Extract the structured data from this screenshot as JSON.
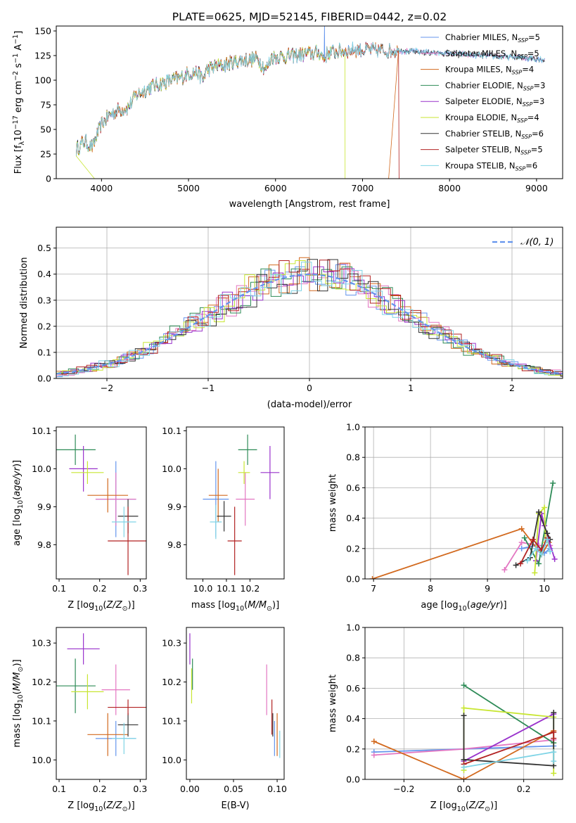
{
  "figure": {
    "title": "PLATE=0625, MJD=52145, FIBERID=0442, z=0.02"
  },
  "series": [
    {
      "name": "Chabrier MILES, N$_{SSP}$=5",
      "label_base": "Chabrier MILES, N",
      "label_sub": "SSP",
      "label_end": "=5",
      "color": "#6495ed"
    },
    {
      "name": "Salpeter MILES, N$_{SSP}$=5",
      "label_base": "Salpeter MILES, N",
      "label_sub": "SSP",
      "label_end": "=5",
      "color": "#e377c2"
    },
    {
      "name": "Kroupa MILES, N$_{SSP}$=4",
      "label_base": "Kroupa MILES, N",
      "label_sub": "SSP",
      "label_end": "=4",
      "color": "#d2691e"
    },
    {
      "name": "Chabrier ELODIE, N$_{SSP}$=3",
      "label_base": "Chabrier ELODIE, N",
      "label_sub": "SSP",
      "label_end": "=3",
      "color": "#2e8b57"
    },
    {
      "name": "Salpeter ELODIE, N$_{SSP}$=3",
      "label_base": "Salpeter ELODIE, N",
      "label_sub": "SSP",
      "label_end": "=3",
      "color": "#9932cc"
    },
    {
      "name": "Kroupa ELODIE, N$_{SSP}$=4",
      "label_base": "Kroupa ELODIE, N",
      "label_sub": "SSP",
      "label_end": "=4",
      "color": "#c8e632"
    },
    {
      "name": "Chabrier STELIB, N$_{SSP}$=6",
      "label_base": "Chabrier STELIB, N",
      "label_sub": "SSP",
      "label_end": "=6",
      "color": "#333333"
    },
    {
      "name": "Salpeter STELIB, N$_{SSP}$=5",
      "label_base": "Salpeter STELIB, N",
      "label_sub": "SSP",
      "label_end": "=5",
      "color": "#b22222"
    },
    {
      "name": "Kroupa STELIB, N$_{SSP}$=6",
      "label_base": "Kroupa STELIB, N",
      "label_sub": "SSP",
      "label_end": "=6",
      "color": "#7fd4e6"
    }
  ],
  "chart_data": [
    {
      "id": "spectrum",
      "type": "line",
      "title": "PLATE=0625, MJD=52145, FIBERID=0442, z=0.02",
      "xlabel": "wavelength [Angstrom, rest frame]",
      "ylabel_parts": [
        "Flux [f",
        "λ",
        "10",
        "−17",
        " erg cm",
        "−2",
        " s",
        "−1",
        " A",
        "−1",
        "]"
      ],
      "xlim": [
        3480,
        9300
      ],
      "ylim": [
        0,
        155
      ],
      "xticks": [
        4000,
        5000,
        6000,
        7000,
        8000,
        9000
      ],
      "yticks": [
        0,
        25,
        50,
        75,
        100,
        125,
        150
      ],
      "grid": false,
      "legend": "upper right",
      "continuum": [
        [
          3710,
          30
        ],
        [
          3800,
          38
        ],
        [
          3900,
          32
        ],
        [
          3950,
          45
        ],
        [
          4000,
          55
        ],
        [
          4100,
          65
        ],
        [
          4200,
          70
        ],
        [
          4300,
          72
        ],
        [
          4400,
          85
        ],
        [
          4500,
          90
        ],
        [
          4600,
          95
        ],
        [
          4700,
          97
        ],
        [
          4800,
          100
        ],
        [
          4900,
          102
        ],
        [
          5000,
          107
        ],
        [
          5100,
          108
        ],
        [
          5170,
          100
        ],
        [
          5200,
          110
        ],
        [
          5300,
          114
        ],
        [
          5400,
          115
        ],
        [
          5500,
          118
        ],
        [
          5600,
          120
        ],
        [
          5700,
          121
        ],
        [
          5800,
          122
        ],
        [
          5890,
          110
        ],
        [
          5950,
          123
        ],
        [
          6100,
          124
        ],
        [
          6200,
          125
        ],
        [
          6300,
          126
        ],
        [
          6400,
          127
        ],
        [
          6500,
          128
        ],
        [
          6563,
          122
        ],
        [
          6600,
          128
        ],
        [
          6700,
          129
        ],
        [
          6800,
          130
        ],
        [
          6900,
          131
        ],
        [
          7000,
          131
        ],
        [
          7200,
          130
        ],
        [
          7400,
          130
        ],
        [
          7600,
          129
        ],
        [
          7800,
          128
        ],
        [
          8000,
          127
        ],
        [
          8200,
          126
        ],
        [
          8400,
          125
        ],
        [
          8600,
          124
        ],
        [
          8800,
          123
        ],
        [
          9000,
          122
        ],
        [
          9100,
          121
        ]
      ],
      "features": {
        "drop_kroupa_elodie": 6800,
        "drop_kroupa_miles": 7300,
        "drop_salpeter_stelib": 7420,
        "drop_kroupa_elodie_start": 3920,
        "emission_peak": [
          6563,
          160
        ]
      }
    },
    {
      "id": "residuals",
      "type": "histogram",
      "xlabel": "(data-model)/error",
      "ylabel": "Normed distribution",
      "xlim": [
        -2.5,
        2.5
      ],
      "ylim": [
        0,
        0.58
      ],
      "xticks": [
        -2,
        -1,
        0,
        1,
        2
      ],
      "yticks": [
        0.0,
        0.1,
        0.2,
        0.3,
        0.4,
        0.5
      ],
      "grid": true,
      "legend": "upper right",
      "reference": {
        "label": "$\\mathcal{N}(0,1)$",
        "label_text": "𝒩(0, 1)",
        "mu": 0,
        "sigma": 1,
        "color": "#6495ed"
      }
    },
    {
      "id": "age_vs_Z",
      "type": "errorbar",
      "xlabel": "Z [log10(Z/Z⊙)]",
      "ylabel": "age  [log10(age/yr)]",
      "xlim": [
        0.093,
        0.315
      ],
      "ylim": [
        9.71,
        10.11
      ],
      "xticks": [
        0.1,
        0.2,
        0.3
      ],
      "yticks": [
        9.8,
        9.9,
        10.0,
        10.1
      ],
      "points": [
        {
          "s": 0,
          "x": 0.24,
          "y": 9.92,
          "xe": 0.05,
          "ye": 0.1
        },
        {
          "s": 1,
          "x": 0.24,
          "y": 9.92,
          "xe": 0.05,
          "ye": 0.07
        },
        {
          "s": 2,
          "x": 0.22,
          "y": 9.93,
          "xe": 0.05,
          "ye": 0.045
        },
        {
          "s": 3,
          "x": 0.14,
          "y": 10.05,
          "xe": 0.05,
          "ye": 0.04
        },
        {
          "s": 4,
          "x": 0.16,
          "y": 10.0,
          "xe": 0.035,
          "ye": 0.06
        },
        {
          "s": 5,
          "x": 0.17,
          "y": 9.99,
          "xe": 0.04,
          "ye": 0.03
        },
        {
          "s": 6,
          "x": 0.27,
          "y": 9.875,
          "xe": 0.025,
          "ye": 0.045
        },
        {
          "s": 7,
          "x": 0.27,
          "y": 9.81,
          "xe": 0.05,
          "ye": 0.09
        },
        {
          "s": 8,
          "x": 0.26,
          "y": 9.86,
          "xe": 0.03,
          "ye": 0.04
        }
      ]
    },
    {
      "id": "age_vs_mass",
      "type": "errorbar",
      "xlabel": "mass [log10(M/M⊙)]",
      "ylabel": "",
      "xlim": [
        9.93,
        10.345
      ],
      "ylim": [
        9.71,
        10.11
      ],
      "xticks": [
        10.0,
        10.1,
        10.2
      ],
      "yticks": [
        9.8,
        9.9,
        10.0,
        10.1
      ],
      "points": [
        {
          "s": 0,
          "x": 10.055,
          "y": 9.92,
          "xe": 0.055,
          "ye": 0.1
        },
        {
          "s": 1,
          "x": 10.18,
          "y": 9.92,
          "xe": 0.04,
          "ye": 0.07
        },
        {
          "s": 2,
          "x": 10.065,
          "y": 9.93,
          "xe": 0.04,
          "ye": 0.07
        },
        {
          "s": 3,
          "x": 10.19,
          "y": 10.05,
          "xe": 0.04,
          "ye": 0.04
        },
        {
          "s": 4,
          "x": 10.285,
          "y": 9.99,
          "xe": 0.04,
          "ye": 0.07
        },
        {
          "s": 5,
          "x": 10.175,
          "y": 9.99,
          "xe": 0.025,
          "ye": 0.03
        },
        {
          "s": 6,
          "x": 10.09,
          "y": 9.875,
          "xe": 0.03,
          "ye": 0.04
        },
        {
          "s": 7,
          "x": 10.135,
          "y": 9.81,
          "xe": 0.03,
          "ye": 0.09
        },
        {
          "s": 8,
          "x": 10.055,
          "y": 9.86,
          "xe": 0.025,
          "ye": 0.045
        }
      ]
    },
    {
      "id": "massweight_vs_age",
      "type": "line",
      "xlabel": "age  [log10(age/yr)]",
      "ylabel": "mass weight",
      "xlim": [
        6.85,
        10.32
      ],
      "ylim": [
        0,
        1.0
      ],
      "xticks": [
        7,
        8,
        9,
        10
      ],
      "yticks": [
        0.0,
        0.2,
        0.4,
        0.6,
        0.8,
        1.0
      ],
      "grid": true,
      "lines": [
        {
          "s": 0,
          "x": [
            9.6,
            9.85,
            10.0,
            10.1
          ],
          "y": [
            0.2,
            0.22,
            0.17,
            0.2
          ]
        },
        {
          "s": 1,
          "x": [
            9.3,
            9.6,
            9.9,
            10.1
          ],
          "y": [
            0.06,
            0.24,
            0.22,
            0.22
          ]
        },
        {
          "s": 2,
          "x": [
            6.98,
            9.6,
            9.95,
            10.08
          ],
          "y": [
            0.0,
            0.33,
            0.16,
            0.24
          ]
        },
        {
          "s": 3,
          "x": [
            9.65,
            9.9,
            10.15
          ],
          "y": [
            0.27,
            0.1,
            0.63
          ]
        },
        {
          "s": 4,
          "x": [
            9.85,
            9.95,
            10.0,
            10.18
          ],
          "y": [
            0.12,
            0.43,
            0.35,
            0.13
          ]
        },
        {
          "s": 5,
          "x": [
            9.83,
            9.9,
            10.0,
            10.02
          ],
          "y": [
            0.04,
            0.43,
            0.47,
            0.24
          ]
        },
        {
          "s": 6,
          "x": [
            9.5,
            9.75,
            9.9,
            10.05,
            10.1
          ],
          "y": [
            0.09,
            0.14,
            0.44,
            0.3,
            0.26
          ]
        },
        {
          "s": 7,
          "x": [
            9.58,
            9.8,
            9.95,
            10.05
          ],
          "y": [
            0.1,
            0.26,
            0.19,
            0.27
          ]
        },
        {
          "s": 8,
          "x": [
            9.7,
            9.85,
            9.95,
            10.05,
            10.1
          ],
          "y": [
            0.12,
            0.2,
            0.16,
            0.26,
            0.18
          ]
        }
      ]
    },
    {
      "id": "mass_vs_Z",
      "type": "errorbar",
      "xlabel": "Z [log10(Z/Z⊙)]",
      "ylabel": "mass [log10(M/M⊙)]",
      "xlim": [
        0.093,
        0.315
      ],
      "ylim": [
        9.95,
        10.34
      ],
      "xticks": [
        0.1,
        0.2,
        0.3
      ],
      "yticks": [
        10.0,
        10.1,
        10.2,
        10.3
      ],
      "points": [
        {
          "s": 0,
          "x": 0.24,
          "y": 10.055,
          "xe": 0.05,
          "ye": 0.045
        },
        {
          "s": 1,
          "x": 0.24,
          "y": 10.18,
          "xe": 0.035,
          "ye": 0.065
        },
        {
          "s": 2,
          "x": 0.22,
          "y": 10.065,
          "xe": 0.05,
          "ye": 0.055
        },
        {
          "s": 3,
          "x": 0.14,
          "y": 10.19,
          "xe": 0.05,
          "ye": 0.07
        },
        {
          "s": 4,
          "x": 0.16,
          "y": 10.285,
          "xe": 0.04,
          "ye": 0.04
        },
        {
          "s": 5,
          "x": 0.17,
          "y": 10.175,
          "xe": 0.04,
          "ye": 0.045
        },
        {
          "s": 6,
          "x": 0.27,
          "y": 10.09,
          "xe": 0.025,
          "ye": 0.03
        },
        {
          "s": 7,
          "x": 0.27,
          "y": 10.135,
          "xe": 0.05,
          "ye": 0.02
        },
        {
          "s": 8,
          "x": 0.26,
          "y": 10.055,
          "xe": 0.03,
          "ye": 0.04
        }
      ]
    },
    {
      "id": "mass_vs_ebv",
      "type": "errorbar",
      "xlabel": "E(B-V)",
      "ylabel": "",
      "xlim": [
        -0.004,
        0.108
      ],
      "ylim": [
        9.95,
        10.34
      ],
      "xticks": [
        0.0,
        0.05,
        0.1
      ],
      "xticklabels": [
        "0.00",
        "0.05",
        "0.10"
      ],
      "yticks": [
        10.0,
        10.1,
        10.2,
        10.3
      ],
      "points": [
        {
          "s": 0,
          "x": 0.097,
          "y": 10.055,
          "xe": 0,
          "ye": 0.045
        },
        {
          "s": 1,
          "x": 0.088,
          "y": 10.18,
          "xe": 0,
          "ye": 0.065
        },
        {
          "s": 2,
          "x": 0.1,
          "y": 10.065,
          "xe": 0,
          "ye": 0.055
        },
        {
          "s": 3,
          "x": 0.003,
          "y": 10.22,
          "xe": 0,
          "ye": 0.04
        },
        {
          "s": 4,
          "x": 0.0,
          "y": 10.285,
          "xe": 0,
          "ye": 0.04
        },
        {
          "s": 5,
          "x": 0.002,
          "y": 10.19,
          "xe": 0,
          "ye": 0.045
        },
        {
          "s": 6,
          "x": 0.095,
          "y": 10.09,
          "xe": 0,
          "ye": 0.03
        },
        {
          "s": 7,
          "x": 0.094,
          "y": 10.11,
          "xe": 0,
          "ye": 0.045
        },
        {
          "s": 8,
          "x": 0.103,
          "y": 10.04,
          "xe": 0,
          "ye": 0.035
        }
      ]
    },
    {
      "id": "massweight_vs_Z",
      "type": "line",
      "xlabel": "Z [log10(Z/Z⊙)]",
      "ylabel": "mass weight",
      "xlim": [
        -0.33,
        0.33
      ],
      "ylim": [
        0,
        1.0
      ],
      "xticks": [
        -0.2,
        0.0,
        0.2
      ],
      "xticklabels": [
        "−0.2",
        "0.0",
        "0.2"
      ],
      "yticks": [
        0.0,
        0.2,
        0.4,
        0.6,
        0.8,
        1.0
      ],
      "grid": true,
      "lines": [
        {
          "s": 0,
          "x": [
            -0.3,
            0.0,
            0.3
          ],
          "y": [
            0.18,
            0.2,
            0.22
          ]
        },
        {
          "s": 1,
          "x": [
            -0.3,
            0.0,
            0.3
          ],
          "y": [
            0.16,
            0.2,
            0.26
          ]
        },
        {
          "s": 2,
          "x": [
            -0.3,
            0.0,
            0.3
          ],
          "y": [
            0.25,
            0.0,
            0.32
          ]
        },
        {
          "s": 3,
          "x": [
            0.0,
            0.3
          ],
          "y": [
            0.62,
            0.24
          ]
        },
        {
          "s": 4,
          "x": [
            0.0,
            0.3
          ],
          "y": [
            0.12,
            0.43
          ]
        },
        {
          "s": 5,
          "x": [
            0.0,
            0.0,
            0.3,
            0.3
          ],
          "y": [
            0.06,
            0.47,
            0.41,
            0.04
          ]
        },
        {
          "s": 6,
          "x": [
            0.0,
            0.0,
            0.3,
            0.3
          ],
          "y": [
            0.42,
            0.13,
            0.09,
            0.44
          ]
        },
        {
          "s": 7,
          "x": [
            0.0,
            0.3,
            0.3
          ],
          "y": [
            0.1,
            0.31,
            0.27
          ]
        },
        {
          "s": 8,
          "x": [
            0.0,
            0.3,
            0.3
          ],
          "y": [
            0.08,
            0.18,
            0.12
          ]
        }
      ]
    }
  ]
}
